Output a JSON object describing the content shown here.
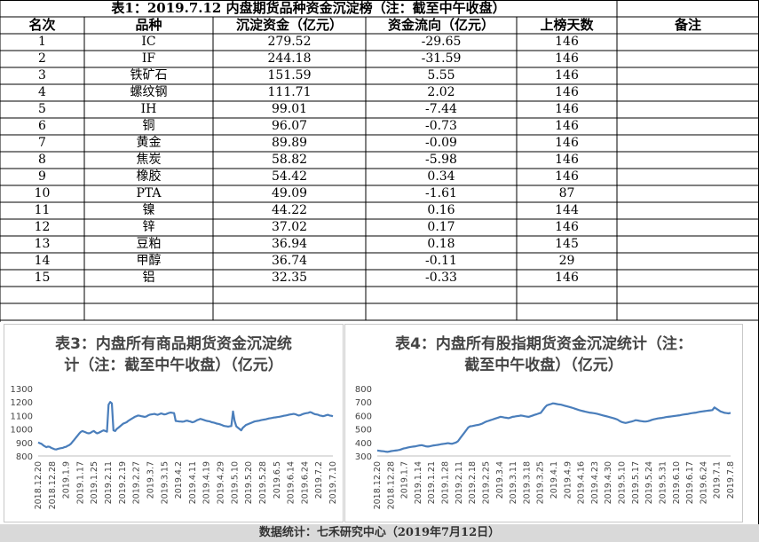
{
  "table": {
    "title": "表1：2019.7.12 内盘期货品种资金沉淀榜（注：截至中午收盘）",
    "headers": [
      "名次",
      "品种",
      "沉淀资金（亿元）",
      "资金流向（亿元）",
      "上榜天数",
      "备注"
    ],
    "rows": [
      [
        "1",
        "IC",
        "279.52",
        "-29.65",
        "146"
      ],
      [
        "2",
        "IF",
        "244.18",
        "-31.59",
        "146"
      ],
      [
        "3",
        "铁矿石",
        "151.59",
        "5.55",
        "146"
      ],
      [
        "4",
        "螺纹钢",
        "111.71",
        "2.02",
        "146"
      ],
      [
        "5",
        "IH",
        "99.01",
        "-7.44",
        "146"
      ],
      [
        "6",
        "铜",
        "96.07",
        "-0.73",
        "146"
      ],
      [
        "7",
        "黄金",
        "89.89",
        "-0.09",
        "146"
      ],
      [
        "8",
        "焦炭",
        "58.82",
        "-5.98",
        "146"
      ],
      [
        "9",
        "橡胶",
        "54.42",
        "0.34",
        "146"
      ],
      [
        "10",
        "PTA",
        "49.09",
        "-1.61",
        "87"
      ],
      [
        "11",
        "镍",
        "44.22",
        "0.16",
        "144"
      ],
      [
        "12",
        "锌",
        "37.02",
        "0.17",
        "146"
      ],
      [
        "13",
        "豆粕",
        "36.94",
        "0.18",
        "145"
      ],
      [
        "14",
        "甲醇",
        "36.74",
        "-0.11",
        "29"
      ],
      [
        "15",
        "铝",
        "32.35",
        "-0.33",
        "146"
      ]
    ]
  },
  "footer": "数据统计：七禾研究中心（2019年7月12日）",
  "chart_data": [
    {
      "type": "line",
      "title_line1": "表3：内盘所有商品期货资金沉淀统",
      "title_line2": "计（注：截至中午收盘）（亿元）",
      "ylim": [
        800,
        1300
      ],
      "yticks": [
        800,
        900,
        1000,
        1100,
        1200,
        1300
      ],
      "xticks": [
        "2018.12.20",
        "2018.12.28",
        "2019.1.9",
        "2019.1.17",
        "2019.1.25",
        "2019.2.11",
        "2019.2.19",
        "2019.2.27",
        "2019.3.7",
        "2019.3.15",
        "2019.4.2",
        "2019.4.11",
        "2019.4.19",
        "2019.4.29",
        "2019.5.10",
        "2019.5.20",
        "2019.5.28",
        "2019.6.5",
        "2019.6.14",
        "2019.6.24",
        "2019.7.2",
        "2019.7.10"
      ],
      "color": "#4a7ebb",
      "values": [
        900,
        895,
        890,
        880,
        872,
        865,
        870,
        868,
        860,
        855,
        850,
        848,
        852,
        855,
        858,
        860,
        865,
        868,
        875,
        880,
        890,
        905,
        920,
        935,
        950,
        965,
        978,
        985,
        980,
        975,
        970,
        968,
        972,
        980,
        985,
        975,
        968,
        972,
        978,
        985,
        990,
        985,
        980,
        1180,
        1200,
        1190,
        990,
        985,
        1000,
        1010,
        1020,
        1030,
        1040,
        1045,
        1050,
        1060,
        1068,
        1075,
        1082,
        1090,
        1095,
        1100,
        1098,
        1095,
        1093,
        1090,
        1092,
        1100,
        1105,
        1108,
        1110,
        1112,
        1108,
        1105,
        1110,
        1115,
        1112,
        1108,
        1110,
        1115,
        1120,
        1122,
        1120,
        1118,
        1060,
        1058,
        1056,
        1055,
        1054,
        1055,
        1060,
        1062,
        1058,
        1055,
        1050,
        1052,
        1058,
        1065,
        1070,
        1075,
        1072,
        1068,
        1064,
        1060,
        1058,
        1055,
        1050,
        1048,
        1045,
        1040,
        1038,
        1035,
        1030,
        1025,
        1022,
        1020,
        1018,
        1020,
        1022,
        1130,
        1060,
        1020,
        1010,
        1000,
        990,
        1010,
        1020,
        1030,
        1035,
        1040,
        1045,
        1050,
        1055,
        1058,
        1060,
        1062,
        1065,
        1068,
        1070,
        1072,
        1075,
        1078,
        1080,
        1082,
        1085,
        1086,
        1088,
        1090,
        1092,
        1095,
        1098,
        1100,
        1102,
        1105,
        1108,
        1110,
        1112,
        1110,
        1105,
        1100,
        1102,
        1108,
        1112,
        1115,
        1118,
        1120,
        1125,
        1122,
        1115,
        1110,
        1108,
        1105,
        1100,
        1098,
        1095,
        1098,
        1102,
        1105,
        1100,
        1098,
        1095
      ]
    },
    {
      "type": "line",
      "title_line1": "表4：内盘所有股指期货资金沉淀统计（注：",
      "title_line2": "截至中午收盘）（亿元）",
      "ylim": [
        300,
        800
      ],
      "yticks": [
        300,
        400,
        500,
        600,
        700,
        800
      ],
      "xticks": [
        "2018.12.20",
        "2018.12.28",
        "2019.1.7",
        "2019.1.14",
        "2019.1.21",
        "2019.1.28",
        "2019.2.11",
        "2019.2.18",
        "2019.2.25",
        "2019.3.4",
        "2019.3.11",
        "2019.3.18",
        "2019.3.25",
        "2019.4.1",
        "2019.4.9",
        "2019.4.16",
        "2019.4.23",
        "2019.4.30",
        "2019.5.10",
        "2019.5.17",
        "2019.5.24",
        "2019.5.31",
        "2019.6.10",
        "2019.6.17",
        "2019.6.24",
        "2019.7.1",
        "2019.7.8"
      ],
      "color": "#4a7ebb",
      "values": [
        340,
        338,
        336,
        335,
        332,
        330,
        333,
        336,
        338,
        340,
        342,
        345,
        350,
        355,
        358,
        362,
        365,
        368,
        370,
        372,
        375,
        378,
        380,
        376,
        372,
        370,
        372,
        375,
        378,
        380,
        382,
        385,
        388,
        390,
        392,
        395,
        392,
        390,
        395,
        400,
        410,
        430,
        450,
        470,
        490,
        510,
        520,
        522,
        525,
        528,
        530,
        535,
        540,
        548,
        555,
        560,
        565,
        570,
        575,
        580,
        585,
        590,
        588,
        585,
        583,
        580,
        585,
        590,
        592,
        595,
        597,
        600,
        598,
        595,
        592,
        590,
        595,
        600,
        605,
        610,
        615,
        620,
        640,
        660,
        675,
        680,
        685,
        690,
        688,
        685,
        682,
        680,
        676,
        672,
        668,
        664,
        660,
        655,
        650,
        645,
        640,
        636,
        632,
        628,
        625,
        622,
        620,
        618,
        615,
        612,
        608,
        604,
        600,
        596,
        592,
        588,
        584,
        580,
        575,
        570,
        560,
        552,
        548,
        545,
        548,
        552,
        555,
        560,
        565,
        563,
        560,
        558,
        556,
        555,
        558,
        562,
        568,
        572,
        575,
        578,
        580,
        582,
        585,
        588,
        590,
        592,
        594,
        596,
        598,
        600,
        602,
        605,
        608,
        610,
        612,
        615,
        618,
        620,
        622,
        625,
        628,
        630,
        632,
        634,
        636,
        638,
        640,
        660,
        650,
        640,
        630,
        625,
        620,
        618,
        616,
        620
      ]
    }
  ]
}
